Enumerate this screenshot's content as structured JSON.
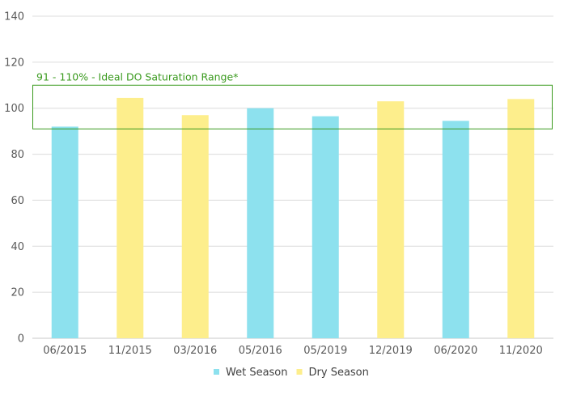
{
  "chart_data": {
    "type": "bar",
    "categories": [
      "06/2015",
      "11/2015",
      "03/2016",
      "05/2016",
      "05/2019",
      "12/2019",
      "06/2020",
      "11/2020"
    ],
    "values": [
      92,
      104.5,
      97,
      100,
      96.5,
      103,
      94.5,
      104
    ],
    "season": [
      "Wet Season",
      "Dry Season",
      "Dry Season",
      "Wet Season",
      "Wet Season",
      "Dry Season",
      "Wet Season",
      "Dry Season"
    ],
    "series": [
      {
        "name": "Wet Season",
        "color": "#8de1ee"
      },
      {
        "name": "Dry Season",
        "color": "#fdee8c"
      }
    ],
    "ylim": [
      0,
      140
    ],
    "yticks": [
      0,
      20,
      40,
      60,
      80,
      100,
      120,
      140
    ],
    "grid": true,
    "legend": "bottom-center",
    "annotation": {
      "text": "91 - 110% - Ideal DO Saturation Range*",
      "range": [
        91,
        110
      ],
      "color": "#3a9a1e"
    },
    "title": "",
    "xlabel": "",
    "ylabel": ""
  }
}
